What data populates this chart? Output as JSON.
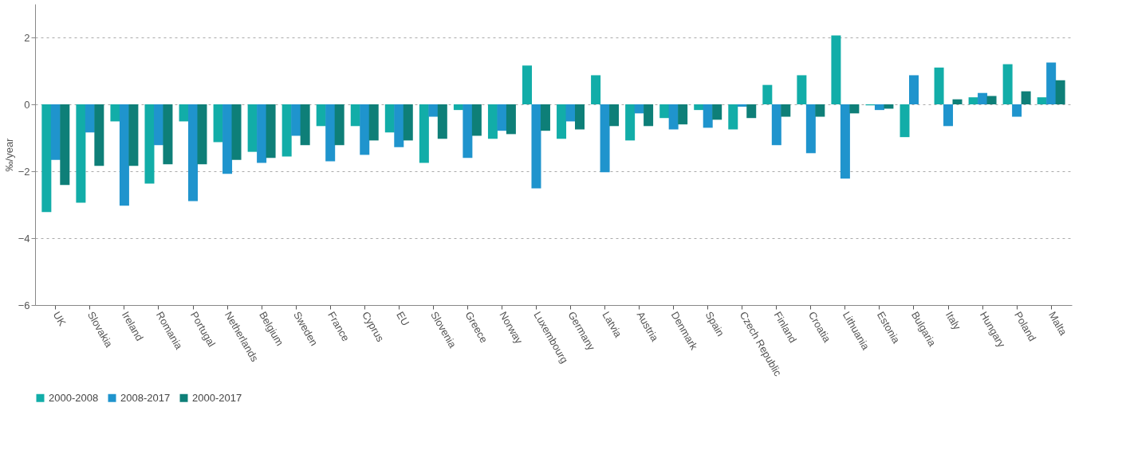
{
  "chart_data": {
    "type": "bar",
    "ylabel": "‰/year",
    "categories": [
      "UK",
      "Slovakia",
      "Ireland",
      "Romania",
      "Portugal",
      "Netherlands",
      "Belgium",
      "Sweden",
      "France",
      "Cyprus",
      "EU",
      "Slovenia",
      "Greece",
      "Norway",
      "Luxembourg",
      "Germany",
      "Latvia",
      "Austria",
      "Denmark",
      "Spain",
      "Czech Republic",
      "Finland",
      "Croatia",
      "Lithuania",
      "Estonia",
      "Bulgaria",
      "Italy",
      "Hungary",
      "Poland",
      "Malta"
    ],
    "series": [
      {
        "name": "2000-2008",
        "color": "#12ada8",
        "values": [
          -3.22,
          -2.94,
          -0.51,
          -2.37,
          -0.51,
          -1.13,
          -1.42,
          -1.56,
          -0.65,
          -0.65,
          -0.84,
          -1.75,
          -0.17,
          -1.03,
          1.16,
          -1.03,
          0.87,
          -1.08,
          -0.41,
          -0.17,
          -0.75,
          0.58,
          0.87,
          2.06,
          -0.03,
          -0.98,
          1.1,
          0.21,
          1.2,
          0.21
        ]
      },
      {
        "name": "2008-2017",
        "color": "#1f94cd",
        "values": [
          -1.66,
          -0.84,
          -3.03,
          -1.22,
          -2.89,
          -2.08,
          -1.75,
          -0.94,
          -1.7,
          -1.51,
          -1.28,
          -0.37,
          -1.6,
          -0.79,
          -2.51,
          -0.51,
          -2.03,
          -0.27,
          -0.75,
          -0.7,
          -0.07,
          -1.22,
          -1.46,
          -2.22,
          -0.17,
          0.87,
          -0.65,
          0.34,
          -0.37,
          1.25
        ]
      },
      {
        "name": "2000-2017",
        "color": "#0e7f78",
        "values": [
          -2.41,
          -1.84,
          -1.84,
          -1.79,
          -1.79,
          -1.66,
          -1.6,
          -1.22,
          -1.22,
          -1.08,
          -1.08,
          -1.03,
          -0.94,
          -0.89,
          -0.79,
          -0.75,
          -0.65,
          -0.65,
          -0.6,
          -0.46,
          -0.41,
          -0.37,
          -0.37,
          -0.27,
          -0.13,
          0,
          0.15,
          0.25,
          0.39,
          0.72
        ]
      }
    ],
    "ylim": [
      -6,
      3
    ],
    "yticks": [
      -6,
      -4,
      -2,
      0,
      2
    ],
    "grid": "y",
    "legend": "bottom"
  }
}
